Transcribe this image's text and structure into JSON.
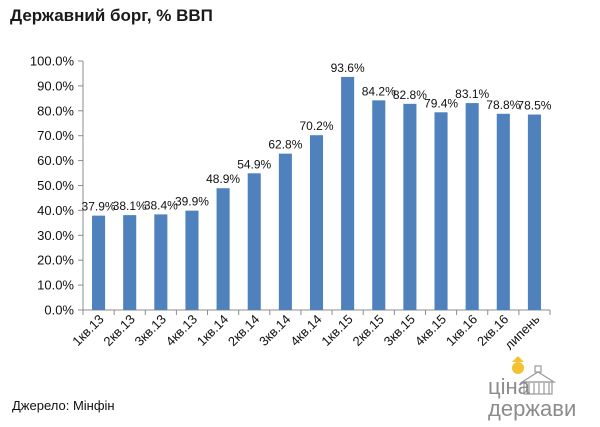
{
  "title": "Державний борг, % ВВП",
  "source": "Джерело: Мінфін",
  "logo": {
    "line1": "ціна",
    "line2": "держави"
  },
  "colors": {
    "bar": "#4f81bd",
    "axis": "#8c8c8c",
    "accent": "#f2c230"
  },
  "chart_data": {
    "type": "bar",
    "categories": [
      "1кв.13",
      "2кв.13",
      "3кв.13",
      "4кв.13",
      "1кв.14",
      "2кв.14",
      "3кв.14",
      "4кв.14",
      "1кв.15",
      "2кв.15",
      "3кв.15",
      "4кв.15",
      "1кв.16",
      "2кв.16",
      "липень"
    ],
    "values": [
      37.9,
      38.1,
      38.4,
      39.9,
      48.9,
      54.9,
      62.8,
      70.2,
      93.6,
      84.2,
      82.8,
      79.4,
      83.1,
      78.8,
      78.5
    ],
    "value_labels": [
      "37.9%",
      "38.1%",
      "38.4%",
      "39.9%",
      "48.9%",
      "54.9%",
      "62.8%",
      "70.2%",
      "93.6%",
      "84.2%",
      "82.8%",
      "79.4%",
      "83.1%",
      "78.8%",
      "78.5%"
    ],
    "ylim": [
      0,
      100
    ],
    "yticks": [
      "0.0%",
      "10.0%",
      "20.0%",
      "30.0%",
      "40.0%",
      "50.0%",
      "60.0%",
      "70.0%",
      "80.0%",
      "90.0%",
      "100.0%"
    ],
    "grid": false,
    "legend": "none"
  }
}
